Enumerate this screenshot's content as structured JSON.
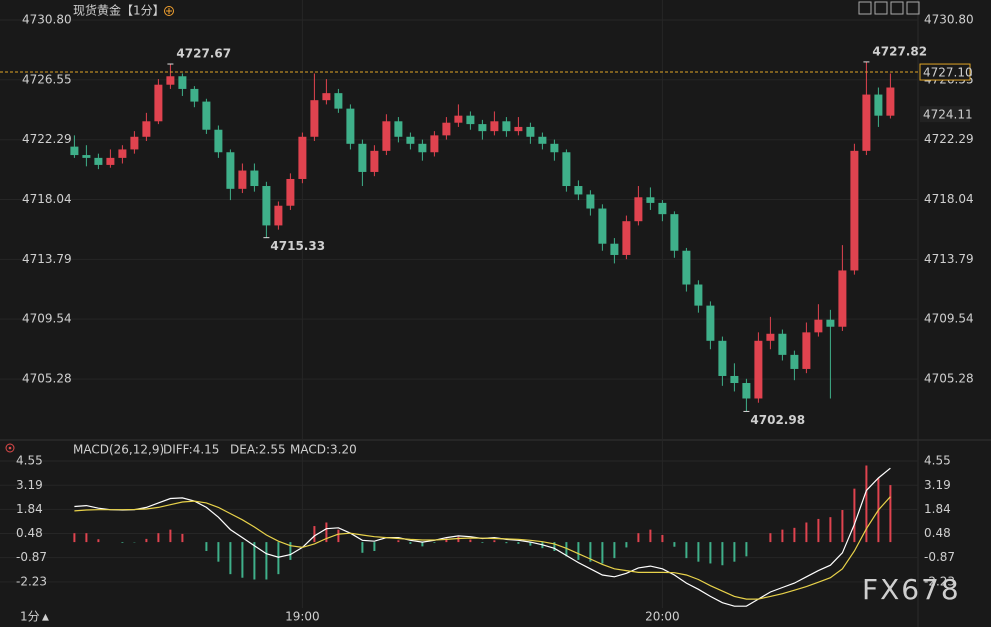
{
  "chart_data": [
    {
      "type": "candlestick",
      "title": "现货黄金",
      "interval": "【1分】",
      "up_color": "#e0434f",
      "down_color": "#3fb08a",
      "open": [
        4721.8,
        4721.2,
        4721.0,
        4720.5,
        4721.0,
        4721.6,
        4722.5,
        4723.6,
        4726.2,
        4726.8,
        4725.9,
        4725.0,
        4723.0,
        4721.4,
        4718.8,
        4720.1,
        4719.0,
        4716.2,
        4717.6,
        4719.5,
        4722.5,
        4725.1,
        4725.6,
        4724.5,
        4722.0,
        4720.0,
        4721.5,
        4723.6,
        4722.5,
        4722.0,
        4721.4,
        4722.6,
        4723.5,
        4724.0,
        4723.4,
        4722.9,
        4723.6,
        4722.9,
        4723.2,
        4722.5,
        4722.0,
        4721.4,
        4719.0,
        4718.4,
        4717.4,
        4714.9,
        4714.1,
        4716.5,
        4718.2,
        4717.8,
        4717.0,
        4714.4,
        4712.0,
        4710.5,
        4708.0,
        4705.5,
        4705.0,
        4703.9,
        4708.0,
        4708.5,
        4707.0,
        4706.0,
        4708.6,
        4709.5,
        4709.0,
        4713.0,
        4721.5,
        4725.5,
        4724.0
      ],
      "high": [
        4722.6,
        4721.9,
        4721.3,
        4721.6,
        4721.9,
        4722.9,
        4724.2,
        4726.6,
        4727.67,
        4727.0,
        4726.1,
        4725.2,
        4723.3,
        4721.6,
        4720.6,
        4720.6,
        4719.3,
        4717.9,
        4719.9,
        4722.8,
        4727.0,
        4726.6,
        4725.9,
        4724.8,
        4722.3,
        4721.9,
        4724.1,
        4723.9,
        4722.8,
        4722.3,
        4722.9,
        4723.9,
        4724.8,
        4724.3,
        4723.7,
        4724.3,
        4723.9,
        4723.9,
        4723.5,
        4722.8,
        4722.3,
        4721.6,
        4719.4,
        4718.7,
        4717.7,
        4715.3,
        4716.9,
        4719.0,
        4718.9,
        4718.0,
        4717.2,
        4714.6,
        4712.3,
        4710.8,
        4708.3,
        4706.4,
        4705.3,
        4708.6,
        4709.7,
        4708.8,
        4707.3,
        4709.3,
        4710.6,
        4710.2,
        4714.8,
        4722.0,
        4727.82,
        4726.0,
        4727.0
      ],
      "low": [
        4721.0,
        4720.4,
        4720.2,
        4720.3,
        4720.6,
        4721.3,
        4722.2,
        4723.4,
        4725.9,
        4725.4,
        4724.6,
        4722.7,
        4721.0,
        4718.0,
        4718.5,
        4718.6,
        4715.33,
        4715.9,
        4717.3,
        4719.2,
        4722.2,
        4724.8,
        4724.2,
        4721.6,
        4719.0,
        4719.7,
        4721.2,
        4722.1,
        4721.6,
        4720.8,
        4721.1,
        4722.3,
        4723.2,
        4723.0,
        4722.3,
        4722.6,
        4722.5,
        4722.6,
        4722.0,
        4721.6,
        4720.8,
        4718.6,
        4718.0,
        4716.9,
        4714.4,
        4713.5,
        4713.8,
        4716.2,
        4717.3,
        4716.5,
        4713.9,
        4711.5,
        4710.0,
        4707.4,
        4704.8,
        4704.4,
        4702.98,
        4703.6,
        4707.4,
        4706.6,
        4705.2,
        4705.7,
        4708.3,
        4703.9,
        4708.7,
        4712.7,
        4721.2,
        4723.2,
        4723.8
      ],
      "close": [
        4721.2,
        4721.0,
        4720.5,
        4721.0,
        4721.6,
        4722.5,
        4723.6,
        4726.2,
        4726.8,
        4725.9,
        4725.0,
        4723.0,
        4721.4,
        4718.8,
        4720.1,
        4719.0,
        4716.2,
        4717.6,
        4719.5,
        4722.5,
        4725.1,
        4725.6,
        4724.5,
        4722.0,
        4720.0,
        4721.5,
        4723.6,
        4722.5,
        4722.0,
        4721.4,
        4722.6,
        4723.5,
        4724.0,
        4723.4,
        4722.9,
        4723.6,
        4722.9,
        4723.2,
        4722.5,
        4722.0,
        4721.4,
        4719.0,
        4718.4,
        4717.4,
        4714.9,
        4714.1,
        4716.5,
        4718.2,
        4717.8,
        4717.0,
        4714.4,
        4712.0,
        4710.5,
        4708.0,
        4705.5,
        4705.0,
        4703.9,
        4708.0,
        4708.5,
        4707.0,
        4706.0,
        4708.6,
        4709.5,
        4709.0,
        4713.0,
        4721.5,
        4725.5,
        4724.0,
        4726.0
      ],
      "ylim": [
        4700.95,
        4732.22
      ],
      "yticks": [
        {
          "value": 4730.8,
          "label": "4730.80"
        },
        4726.55,
        4722.29,
        4718.04,
        4713.79,
        4709.54,
        4705.28
      ],
      "xlim": [
        -6.2,
        70.3
      ],
      "xticks": [
        {
          "value": 19,
          "label": "19:00"
        },
        {
          "value": 49,
          "label": "20:00"
        }
      ],
      "last_price": {
        "value": 4727.1,
        "label": "4727.10"
      },
      "last_price_color": "#e0a526",
      "ma_price": 4724.11,
      "ma_color": "#e8c62e"
    },
    {
      "type": "macd",
      "title": "MACD(26,12,9)",
      "up_color": "#e0434f",
      "down_color": "#3fb08a",
      "ylim": [
        -3.7,
        5.17
      ],
      "yticks": [
        4.55,
        3.19,
        1.84,
        0.48,
        -0.87,
        -2.23
      ],
      "series": [
        {
          "name": "DIFF",
          "label": "DIFF:4.15",
          "kind": "line",
          "color": "#ffffff",
          "values": [
            2.0,
            2.05,
            1.9,
            1.82,
            1.8,
            1.82,
            1.95,
            2.2,
            2.45,
            2.48,
            2.3,
            1.95,
            1.4,
            0.7,
            0.25,
            -0.2,
            -0.65,
            -0.85,
            -0.7,
            -0.3,
            0.35,
            0.75,
            0.8,
            0.5,
            0.1,
            0.05,
            0.25,
            0.25,
            0.1,
            0.0,
            0.1,
            0.25,
            0.35,
            0.3,
            0.2,
            0.25,
            0.15,
            0.1,
            0.0,
            -0.15,
            -0.35,
            -0.75,
            -1.15,
            -1.5,
            -1.85,
            -1.95,
            -1.75,
            -1.45,
            -1.35,
            -1.5,
            -1.85,
            -2.3,
            -2.65,
            -3.05,
            -3.4,
            -3.6,
            -3.6,
            -3.2,
            -2.8,
            -2.55,
            -2.3,
            -1.95,
            -1.6,
            -1.3,
            -0.6,
            1.0,
            2.9,
            3.6,
            4.15
          ]
        },
        {
          "name": "DEA",
          "label": "DEA:2.55",
          "kind": "line",
          "color": "#e8d24a",
          "values": [
            1.75,
            1.8,
            1.82,
            1.82,
            1.82,
            1.83,
            1.86,
            1.95,
            2.1,
            2.25,
            2.3,
            2.2,
            1.95,
            1.6,
            1.25,
            0.85,
            0.4,
            0.05,
            -0.2,
            -0.3,
            -0.1,
            0.2,
            0.45,
            0.5,
            0.4,
            0.3,
            0.25,
            0.2,
            0.15,
            0.12,
            0.12,
            0.15,
            0.2,
            0.23,
            0.22,
            0.2,
            0.18,
            0.15,
            0.1,
            0.02,
            -0.1,
            -0.35,
            -0.65,
            -0.95,
            -1.25,
            -1.5,
            -1.6,
            -1.7,
            -1.7,
            -1.7,
            -1.72,
            -1.85,
            -2.1,
            -2.45,
            -2.75,
            -3.05,
            -3.2,
            -3.2,
            -3.05,
            -2.9,
            -2.7,
            -2.5,
            -2.25,
            -2.0,
            -1.5,
            -0.5,
            0.75,
            1.8,
            2.55
          ]
        },
        {
          "name": "MACD",
          "label": "MACD:3.20",
          "kind": "histogram",
          "color": "#d04fd0",
          "values": [
            0.5,
            0.5,
            0.16,
            0,
            -0.04,
            -0.02,
            0.18,
            0.5,
            0.7,
            0.46,
            0,
            -0.5,
            -1.1,
            -1.8,
            -2.0,
            -2.1,
            -2.1,
            -1.8,
            -1.0,
            0,
            0.9,
            1.1,
            0.7,
            0,
            -0.6,
            -0.5,
            0,
            0.1,
            -0.1,
            -0.24,
            -0.04,
            0.2,
            0.3,
            0.14,
            -0.04,
            0.1,
            -0.06,
            -0.1,
            -0.2,
            -0.34,
            -0.5,
            -0.8,
            -1.0,
            -1.1,
            -1.2,
            -0.9,
            -0.3,
            0.5,
            0.7,
            0.4,
            -0.26,
            -0.9,
            -1.1,
            -1.2,
            -1.3,
            -1.1,
            -0.8,
            0,
            0.5,
            0.7,
            0.8,
            1.1,
            1.3,
            1.4,
            1.8,
            3.0,
            4.3,
            3.6,
            3.2
          ]
        }
      ]
    }
  ],
  "footer": {
    "interval": "1分",
    "watermark": "FX678"
  }
}
